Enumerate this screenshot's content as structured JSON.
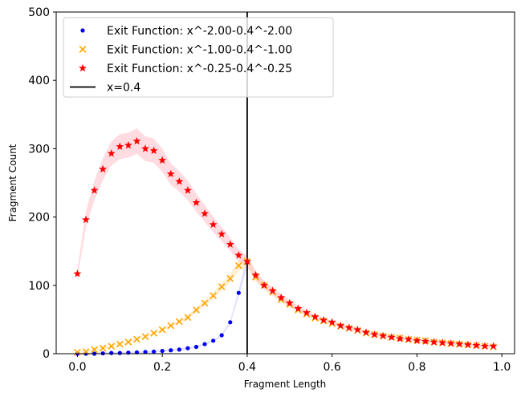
{
  "chart_data": {
    "type": "scatter",
    "title": "",
    "xlabel": "Fragment Length",
    "ylabel": "Fragment Count",
    "xlim": [
      -0.05,
      1.03
    ],
    "ylim": [
      0,
      500
    ],
    "xticks": [
      0.0,
      0.2,
      0.4,
      0.6,
      0.8,
      1.0
    ],
    "xtick_labels": [
      "0.0",
      "0.2",
      "0.4",
      "0.6",
      "0.8",
      "1.0"
    ],
    "yticks": [
      0,
      100,
      200,
      300,
      400,
      500
    ],
    "ytick_labels": [
      "0",
      "100",
      "200",
      "300",
      "400",
      "500"
    ],
    "grid": false,
    "legend_position": "top-left",
    "series": [
      {
        "name": "Exit Function: x^-2.00-0.4^-2.00",
        "marker": "dot",
        "color": "#0000ff",
        "band_color": "#c8c8ff",
        "x": [
          0.0,
          0.02,
          0.04,
          0.06,
          0.08,
          0.1,
          0.12,
          0.14,
          0.16,
          0.18,
          0.2,
          0.22,
          0.24,
          0.26,
          0.28,
          0.3,
          0.32,
          0.34,
          0.36,
          0.38,
          0.4
        ],
        "y": [
          0,
          0,
          0,
          0.5,
          1,
          1,
          1.5,
          2,
          2.5,
          3,
          4,
          5,
          6,
          8,
          10,
          14,
          19,
          27,
          46,
          89,
          135
        ]
      },
      {
        "name": "Exit Function: x^-1.00-0.4^-1.00",
        "marker": "x",
        "color": "#ffa500",
        "band_color": "#ffe4b0",
        "x": [
          0.0,
          0.02,
          0.04,
          0.06,
          0.08,
          0.1,
          0.12,
          0.14,
          0.16,
          0.18,
          0.2,
          0.22,
          0.24,
          0.26,
          0.28,
          0.3,
          0.32,
          0.34,
          0.36,
          0.38,
          0.4,
          0.42,
          0.44,
          0.46,
          0.48,
          0.5,
          0.52,
          0.54,
          0.56,
          0.58,
          0.6,
          0.62,
          0.64,
          0.66,
          0.68,
          0.7,
          0.72,
          0.74,
          0.76,
          0.78,
          0.8,
          0.82,
          0.84,
          0.86,
          0.88,
          0.9,
          0.92,
          0.94,
          0.96,
          0.98
        ],
        "y": [
          2,
          3,
          6,
          8,
          11,
          14,
          17,
          21,
          25,
          30,
          35,
          41,
          47,
          53,
          64,
          74,
          85,
          98,
          110,
          129,
          135,
          112,
          100,
          90,
          79,
          72,
          64,
          58,
          52,
          48,
          44,
          40,
          37,
          34,
          30,
          28,
          26,
          24,
          23,
          21,
          20,
          19,
          17,
          16,
          15,
          14,
          13,
          12,
          11,
          10
        ]
      },
      {
        "name": "Exit Function: x^-0.25-0.4^-0.25",
        "marker": "star",
        "color": "#ff0000",
        "band_color": "#ffc0c8",
        "x": [
          0.0,
          0.02,
          0.04,
          0.06,
          0.08,
          0.1,
          0.12,
          0.14,
          0.16,
          0.18,
          0.2,
          0.22,
          0.24,
          0.26,
          0.28,
          0.3,
          0.32,
          0.34,
          0.36,
          0.38,
          0.4,
          0.42,
          0.44,
          0.46,
          0.48,
          0.5,
          0.52,
          0.54,
          0.56,
          0.58,
          0.6,
          0.62,
          0.64,
          0.66,
          0.68,
          0.7,
          0.72,
          0.74,
          0.76,
          0.78,
          0.8,
          0.82,
          0.84,
          0.86,
          0.88,
          0.9,
          0.92,
          0.94,
          0.96,
          0.98
        ],
        "y": [
          117,
          196,
          239,
          270,
          293,
          303,
          305,
          311,
          300,
          297,
          283,
          263,
          252,
          239,
          221,
          205,
          189,
          175,
          160,
          144,
          135,
          115,
          100,
          92,
          82,
          74,
          66,
          60,
          54,
          49,
          46,
          41,
          38,
          35,
          31,
          28,
          26,
          24,
          22,
          21,
          19,
          18,
          17,
          16,
          15,
          14,
          13,
          12,
          11,
          11
        ]
      },
      {
        "name": "x=0.4",
        "marker": "vline",
        "color": "#000000",
        "x_value": 0.4
      }
    ]
  }
}
